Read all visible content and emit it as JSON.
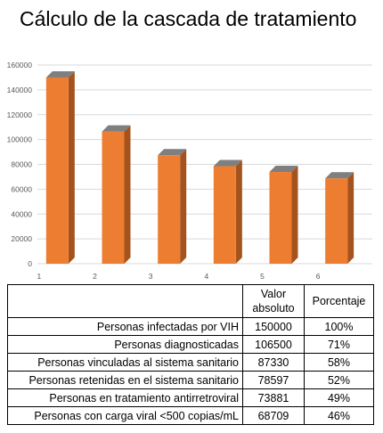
{
  "title": "Cálculo de la cascada de tratamiento",
  "chart_data": {
    "type": "bar",
    "categories": [
      "1",
      "2",
      "3",
      "4",
      "5",
      "6"
    ],
    "values": [
      150000,
      106500,
      87330,
      78597,
      73881,
      68709
    ],
    "yticks": [
      "0",
      "20000",
      "40000",
      "60000",
      "80000",
      "100000",
      "120000",
      "140000",
      "160000"
    ],
    "ylim": [
      0,
      160000
    ],
    "grid": true,
    "colors": {
      "bar_front": "#ED7D31",
      "bar_side": "#A5531D",
      "bar_top": "#7F7F7F"
    }
  },
  "table": {
    "headers": [
      "",
      "Valor absoluto",
      "Porcentaje"
    ],
    "rows": [
      [
        "Personas infectadas por VIH",
        "150000",
        "100%"
      ],
      [
        "Personas diagnosticadas",
        "106500",
        "71%"
      ],
      [
        "Personas vinculadas al sistema sanitario",
        "87330",
        "58%"
      ],
      [
        "Personas retenidas en el sistema sanitario",
        "78597",
        "52%"
      ],
      [
        "Personas en tratamiento antirretroviral",
        "73881",
        "49%"
      ],
      [
        "Personas con carga viral <500 copias/mL",
        "68709",
        "46%"
      ]
    ]
  }
}
